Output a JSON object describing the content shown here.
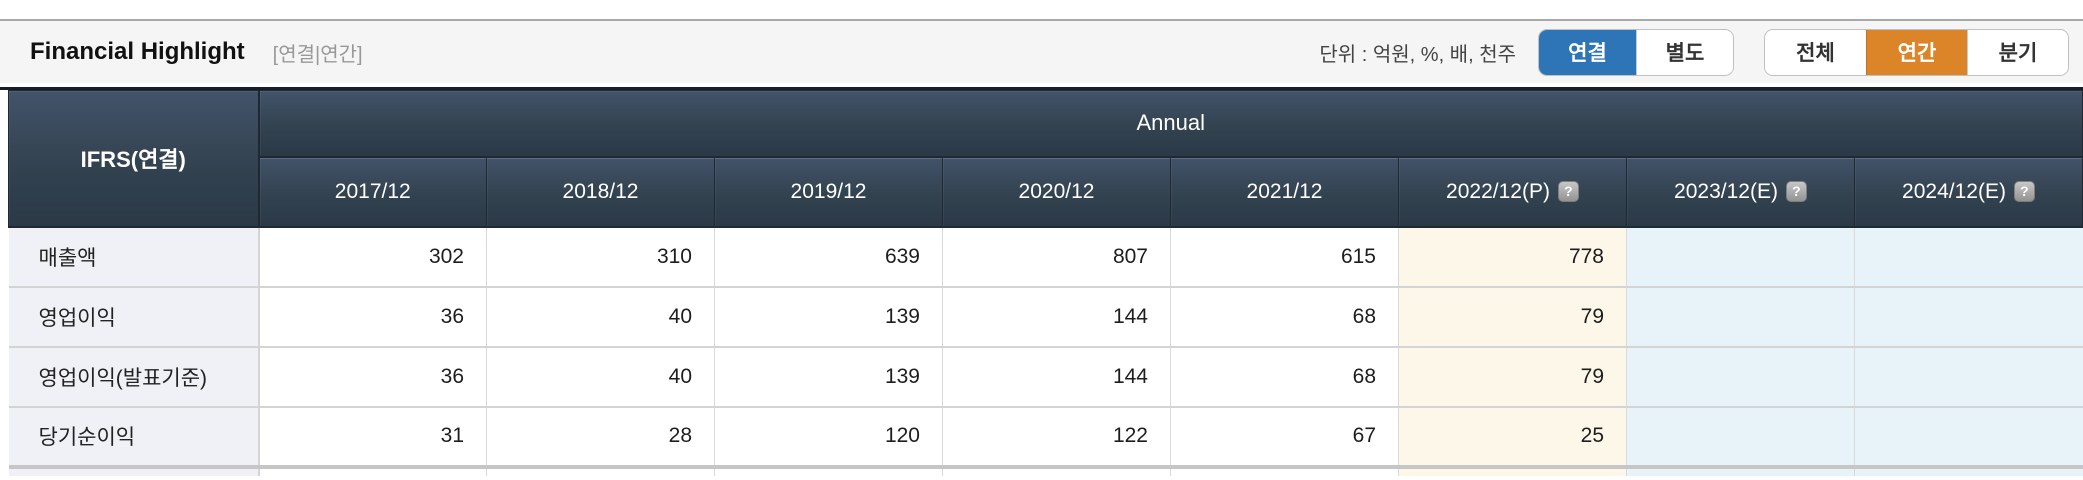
{
  "title_bar": {
    "title": "Financial Highlight",
    "subtitle": "[연결|연간]",
    "unit_label": "단위 : 억원, %, 배, 천주",
    "toggle_consolidated": {
      "options": [
        "연결",
        "별도"
      ],
      "active": "연결"
    },
    "toggle_period": {
      "options": [
        "전체",
        "연간",
        "분기"
      ],
      "active": "연간"
    }
  },
  "table": {
    "corner_label": "IFRS(연결)",
    "group_header": "Annual",
    "help_icon_glyph": "?",
    "columns": [
      {
        "label": "2017/12",
        "help": false
      },
      {
        "label": "2018/12",
        "help": false
      },
      {
        "label": "2019/12",
        "help": false
      },
      {
        "label": "2020/12",
        "help": false
      },
      {
        "label": "2021/12",
        "help": false
      },
      {
        "label": "2022/12(P)",
        "help": true
      },
      {
        "label": "2023/12(E)",
        "help": true
      },
      {
        "label": "2024/12(E)",
        "help": true
      }
    ],
    "rows": [
      {
        "label": "매출액",
        "values": [
          "302",
          "310",
          "639",
          "807",
          "615",
          "778",
          "",
          ""
        ]
      },
      {
        "label": "영업이익",
        "values": [
          "36",
          "40",
          "139",
          "144",
          "68",
          "79",
          "",
          ""
        ]
      },
      {
        "label": "영업이익(발표기준)",
        "values": [
          "36",
          "40",
          "139",
          "144",
          "68",
          "79",
          "",
          ""
        ]
      },
      {
        "label": "당기순이익",
        "values": [
          "31",
          "28",
          "120",
          "122",
          "67",
          "25",
          "",
          ""
        ]
      }
    ]
  },
  "colors": {
    "accent_blue": "#2e75b8",
    "accent_orange": "#dc8428",
    "header_dark": "#32424f",
    "provisional_bg": "#fdf7e9",
    "estimate_bg": "#e7f3f9",
    "label_col_bg": "#eff1f6"
  }
}
